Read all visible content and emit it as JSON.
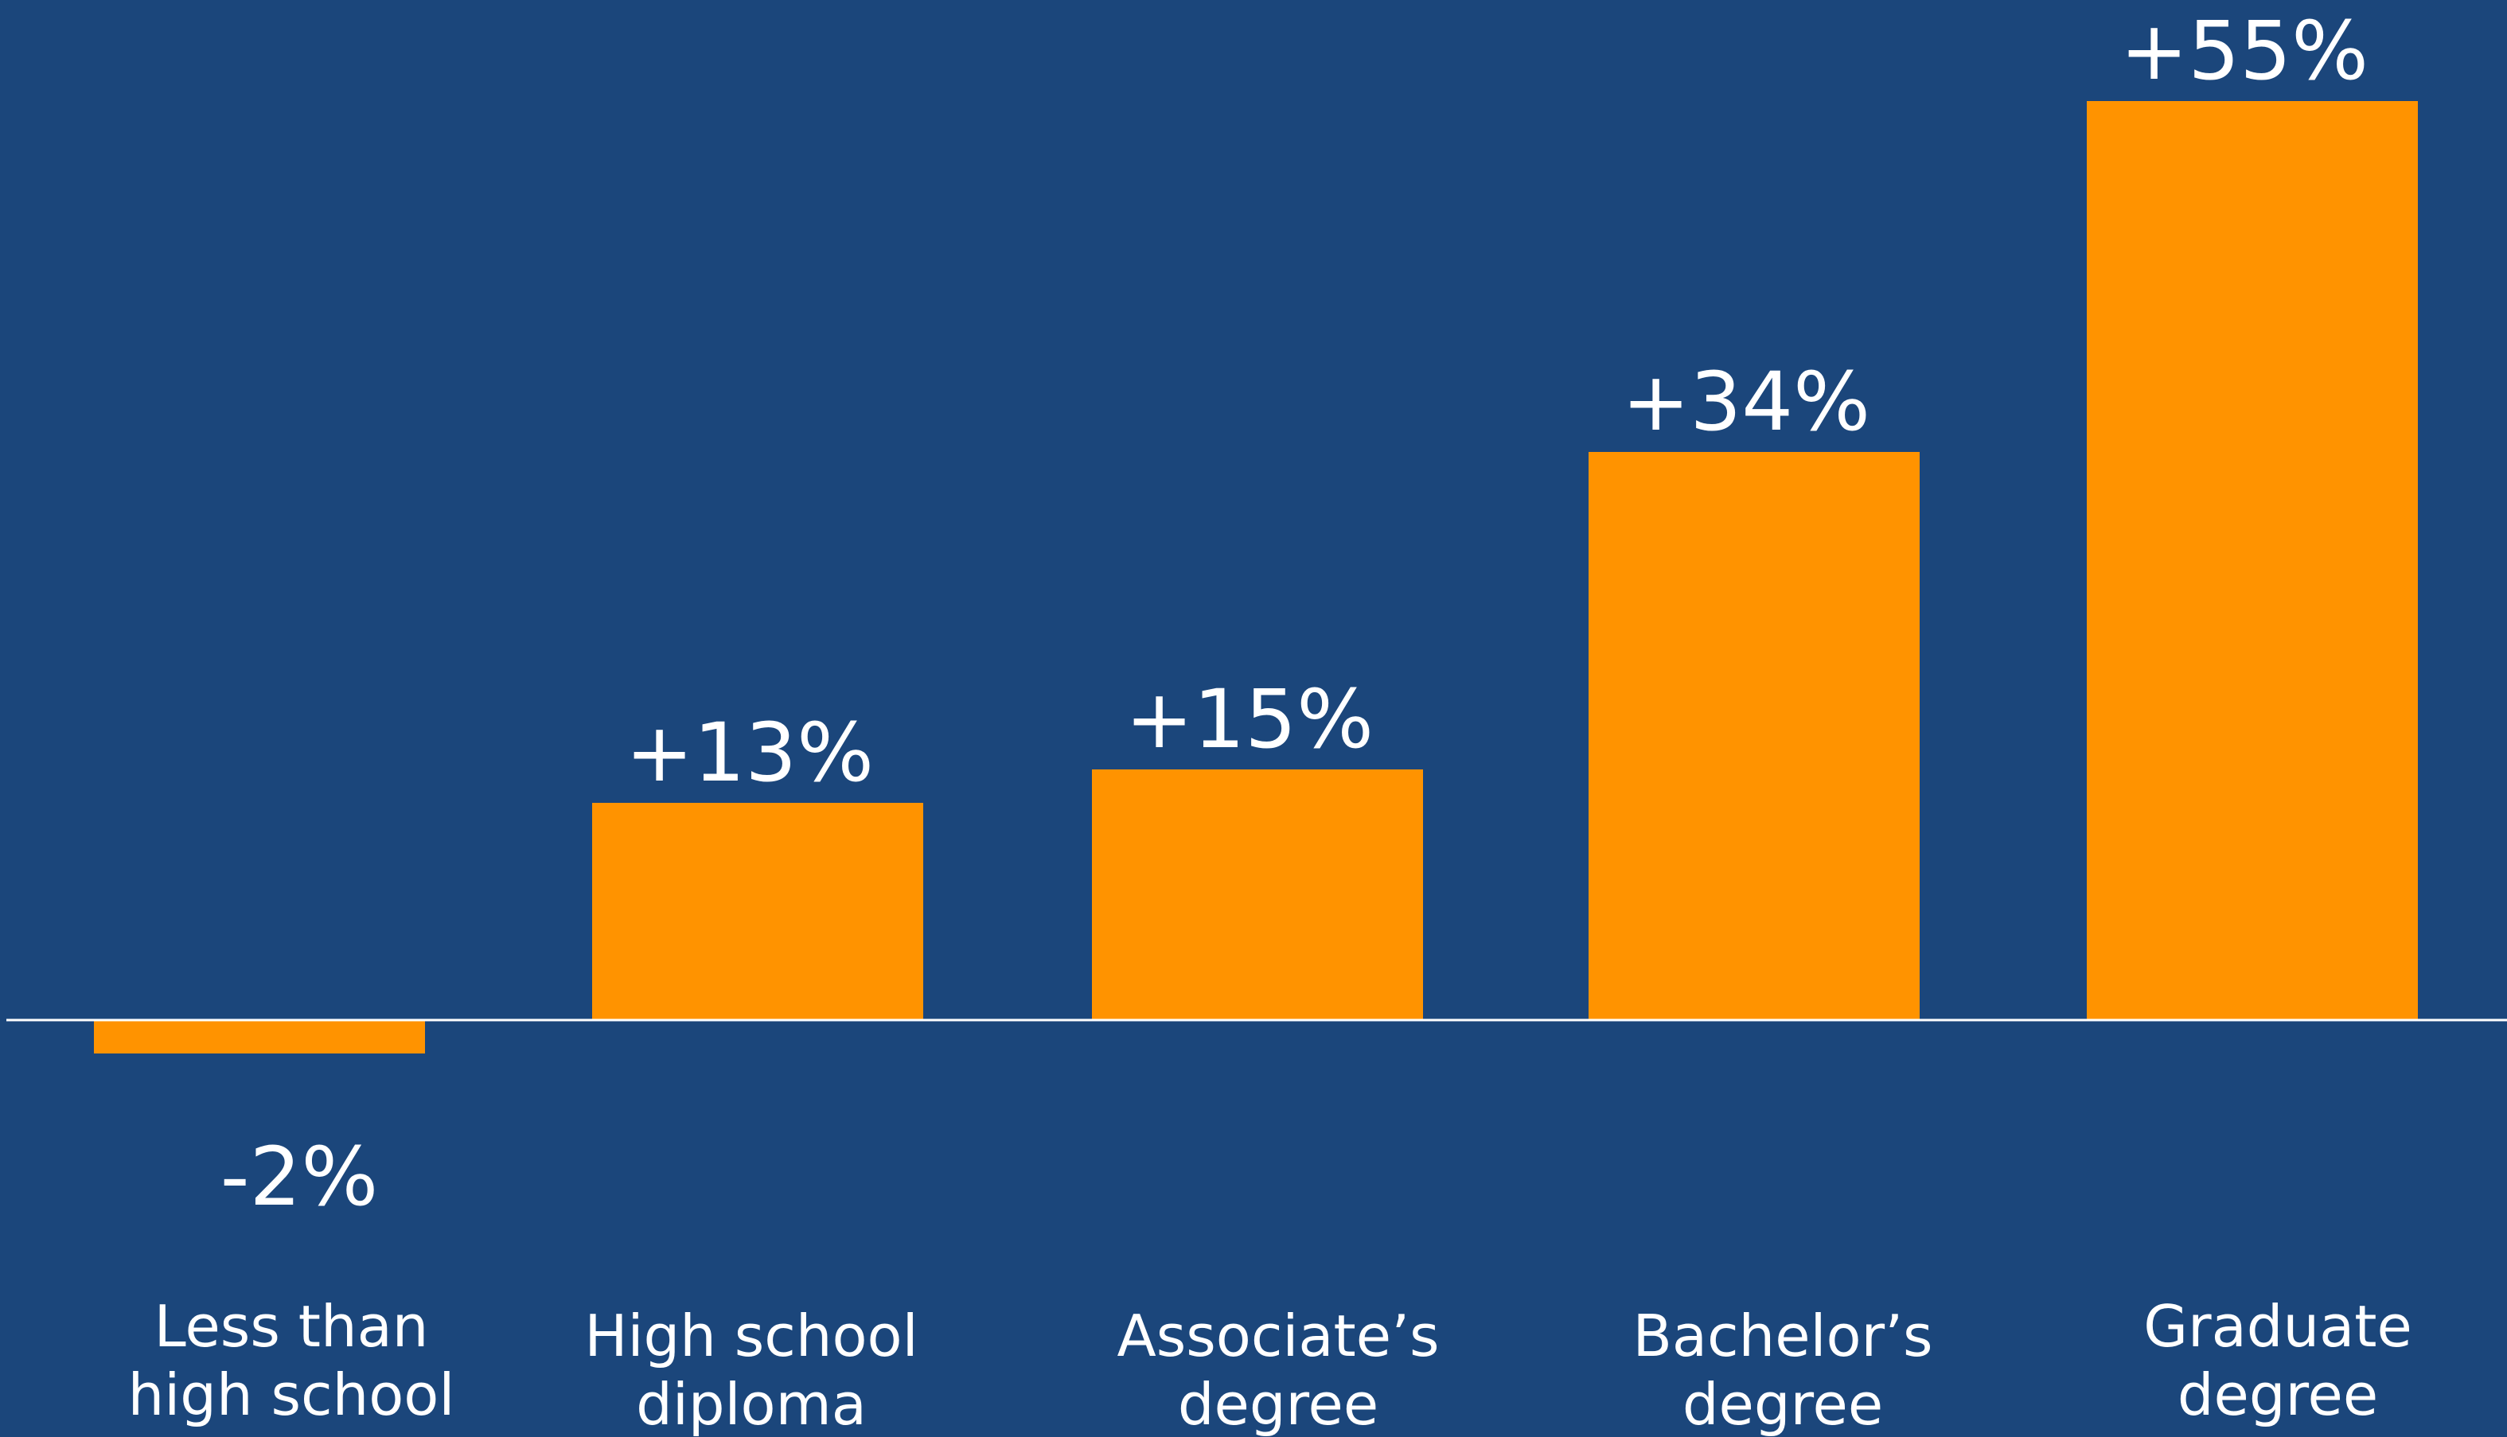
{
  "chart_data": {
    "type": "bar",
    "categories": [
      [
        "Less than",
        "high school"
      ],
      [
        "High school",
        "diploma"
      ],
      [
        "Associate’s",
        "degree"
      ],
      [
        "Bachelor’s",
        "degree"
      ],
      [
        "Graduate",
        "degree"
      ]
    ],
    "values": [
      -2,
      13,
      15,
      34,
      55
    ],
    "value_labels": [
      "-2%",
      "+13%",
      "+15%",
      "+34%",
      "+55%"
    ],
    "title": "",
    "xlabel": "",
    "ylabel": "",
    "ylim": [
      -5,
      60
    ],
    "grid": false,
    "legend": "none",
    "colors": {
      "background": "#1b467b",
      "bar": "#ff9300",
      "baseline": "#ffffff",
      "text": "#ffffff"
    }
  }
}
